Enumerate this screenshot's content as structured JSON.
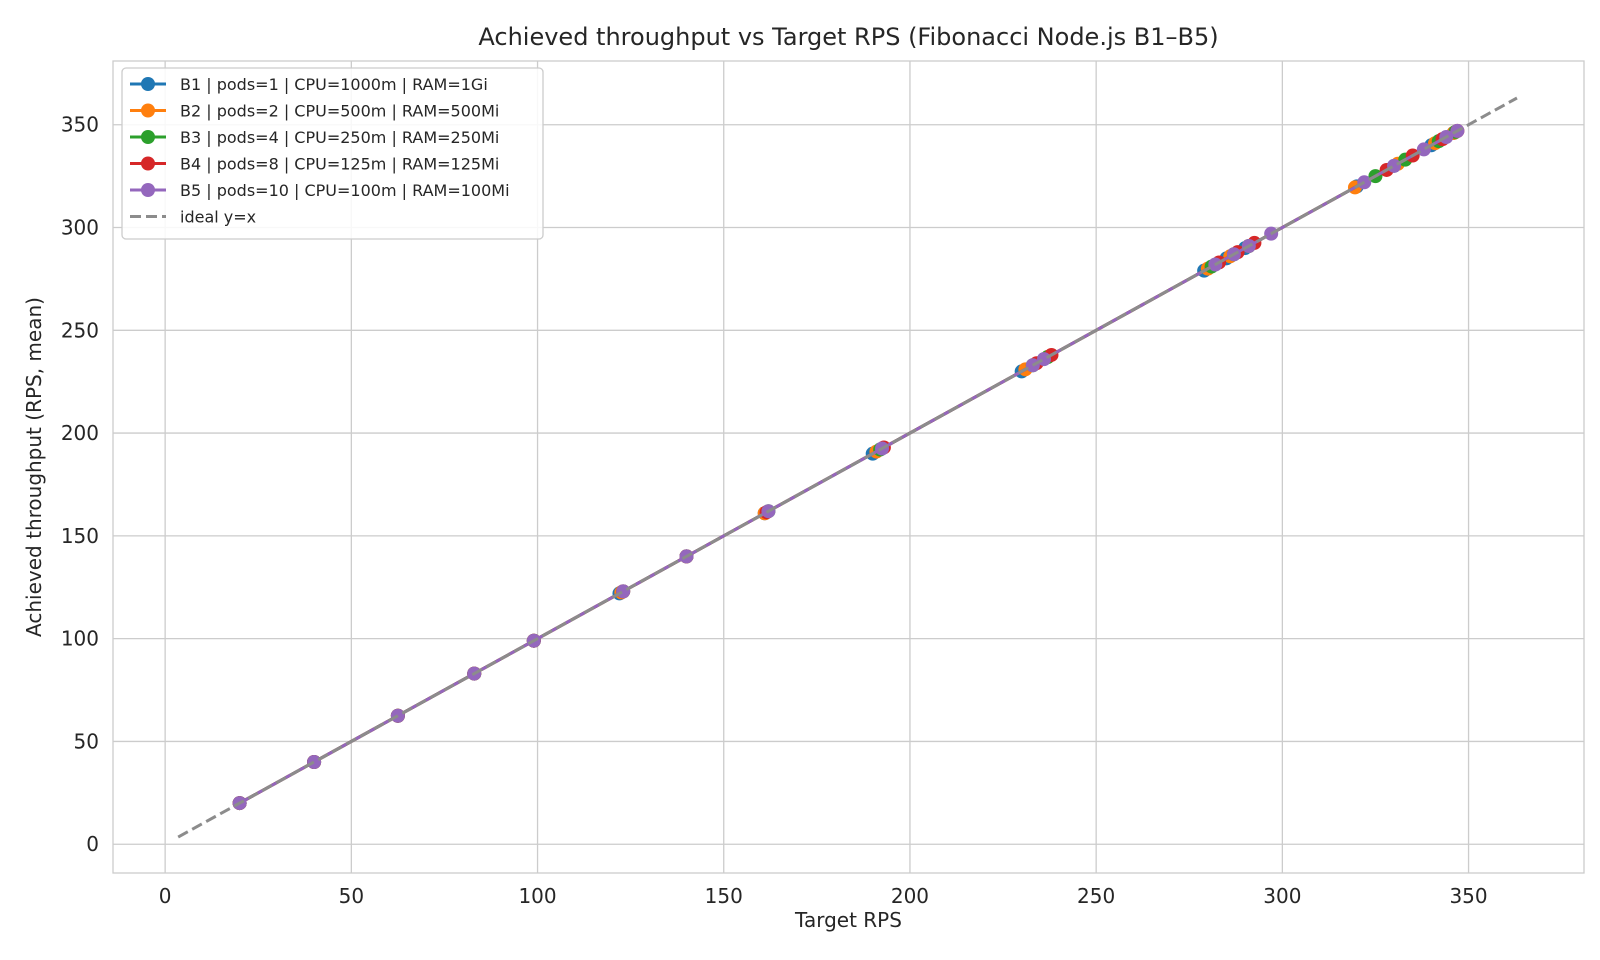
{
  "chart_data": {
    "type": "scatter",
    "title": "Achieved throughput vs Target RPS (Fibonacci Node.js B1–B5)",
    "xlabel": "Target RPS",
    "ylabel": "Achieved throughput (RPS, mean)",
    "xlim": [
      -14,
      381
    ],
    "ylim": [
      -14,
      381
    ],
    "xticks": [
      0,
      50,
      100,
      150,
      200,
      250,
      300,
      350
    ],
    "yticks": [
      0,
      50,
      100,
      150,
      200,
      250,
      300,
      350
    ],
    "grid": true,
    "legend_position": "top-left",
    "series": [
      {
        "name": "B1 | pods=1 | CPU=1000m | RAM=1Gi",
        "color": "#1f77b4",
        "style": "line-marker",
        "points": [
          [
            20,
            20
          ],
          [
            40,
            40
          ],
          [
            62.5,
            62.5
          ],
          [
            83,
            83
          ],
          [
            99,
            99
          ],
          [
            122,
            122
          ],
          [
            140,
            140
          ],
          [
            161,
            161
          ],
          [
            190,
            190
          ],
          [
            230,
            230
          ],
          [
            236,
            236
          ],
          [
            279,
            279
          ],
          [
            285,
            285
          ],
          [
            290,
            290
          ],
          [
            320,
            320
          ],
          [
            330,
            330
          ],
          [
            340,
            340
          ],
          [
            346,
            346
          ]
        ]
      },
      {
        "name": "B2 | pods=2 | CPU=500m | RAM=500Mi",
        "color": "#ff7f0e",
        "style": "line-marker",
        "points": [
          [
            20,
            20
          ],
          [
            40,
            40
          ],
          [
            62.5,
            62.5
          ],
          [
            83,
            83
          ],
          [
            99,
            99
          ],
          [
            122.5,
            122.5
          ],
          [
            140,
            140
          ],
          [
            161,
            161
          ],
          [
            191,
            191
          ],
          [
            231,
            231
          ],
          [
            237,
            237
          ],
          [
            280,
            280
          ],
          [
            286,
            286
          ],
          [
            291,
            291
          ],
          [
            319.5,
            319.5
          ],
          [
            331,
            331
          ],
          [
            341,
            341
          ],
          [
            346,
            346
          ]
        ]
      },
      {
        "name": "B3 | pods=4 | CPU=250m | RAM=250Mi",
        "color": "#2ca02c",
        "style": "line-marker",
        "points": [
          [
            20,
            20
          ],
          [
            40,
            40
          ],
          [
            62.5,
            62.5
          ],
          [
            83,
            83
          ],
          [
            99,
            99
          ],
          [
            123,
            123
          ],
          [
            140,
            140
          ],
          [
            162,
            162
          ],
          [
            192,
            192
          ],
          [
            233,
            233
          ],
          [
            237,
            237
          ],
          [
            281,
            281
          ],
          [
            287,
            287
          ],
          [
            291,
            291
          ],
          [
            325,
            325
          ],
          [
            333,
            333
          ],
          [
            342,
            342
          ],
          [
            346.5,
            346.5
          ]
        ]
      },
      {
        "name": "B4 | pods=8 | CPU=125m | RAM=125Mi",
        "color": "#d62728",
        "style": "line-marker",
        "points": [
          [
            20,
            20
          ],
          [
            40,
            40
          ],
          [
            62.5,
            62.5
          ],
          [
            83,
            83
          ],
          [
            99,
            99
          ],
          [
            123,
            123
          ],
          [
            140,
            140
          ],
          [
            161.5,
            161.5
          ],
          [
            193,
            193
          ],
          [
            234,
            234
          ],
          [
            238,
            238
          ],
          [
            283,
            283
          ],
          [
            288,
            288
          ],
          [
            292.5,
            292.5
          ],
          [
            328,
            328
          ],
          [
            335,
            335
          ],
          [
            343,
            343
          ],
          [
            347,
            347
          ]
        ]
      },
      {
        "name": "B5 | pods=10 | CPU=100m | RAM=100Mi",
        "color": "#9467bd",
        "style": "line-marker",
        "points": [
          [
            20,
            20
          ],
          [
            40,
            40
          ],
          [
            62.5,
            62.5
          ],
          [
            83,
            83
          ],
          [
            99,
            99
          ],
          [
            123,
            123
          ],
          [
            140,
            140
          ],
          [
            162,
            162
          ],
          [
            192.5,
            192.5
          ],
          [
            233,
            233
          ],
          [
            236,
            236
          ],
          [
            282,
            282
          ],
          [
            287,
            287
          ],
          [
            291,
            291
          ],
          [
            297,
            297
          ],
          [
            322,
            322
          ],
          [
            330,
            330
          ],
          [
            338,
            338
          ],
          [
            344,
            344
          ],
          [
            347,
            347
          ]
        ]
      },
      {
        "name": "ideal y=x",
        "color": "#8c8c8c",
        "style": "dashed",
        "points": [
          [
            3.5,
            3.5
          ],
          [
            363,
            363
          ]
        ]
      }
    ]
  }
}
